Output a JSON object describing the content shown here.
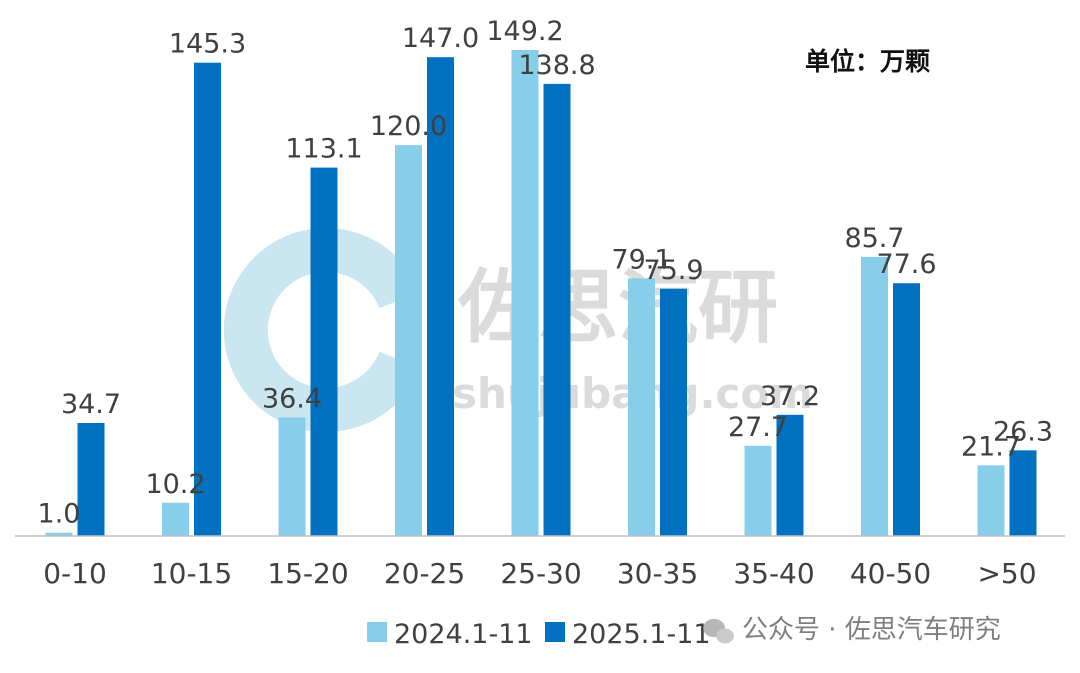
{
  "unit_label": "单位：万颗",
  "watermark": {
    "cn": "佐思汽研",
    "domain": "shujubang.com",
    "wechat": "公众号 · 佐思汽车研究",
    "wechat_icon": "wechat-icon",
    "logo_icon": "zuosi-logo-icon"
  },
  "colors": {
    "series1": "#87CEEB",
    "series2": "#0070C0",
    "axis": "#BFBFBF"
  },
  "chart_data": {
    "type": "bar",
    "categories": [
      "0-10",
      "10-15",
      "15-20",
      "20-25",
      "25-30",
      "30-35",
      "35-40",
      "40-50",
      ">50"
    ],
    "series": [
      {
        "name": "2024.1-11",
        "values": [
          1.0,
          10.2,
          36.4,
          120.0,
          149.2,
          79.1,
          27.7,
          85.7,
          21.7
        ],
        "labels": [
          "1.0",
          "10.2",
          "36.4",
          "120.0",
          "149.2",
          "79.1",
          "27.7",
          "85.7",
          "21.7"
        ]
      },
      {
        "name": "2025.1-11",
        "values": [
          34.7,
          145.3,
          113.1,
          147.0,
          138.8,
          75.9,
          37.2,
          77.6,
          26.3
        ],
        "labels": [
          "34.7",
          "145.3",
          "113.1",
          "147.0",
          "138.8",
          "75.9",
          "37.2",
          "77.6",
          "26.3"
        ]
      }
    ],
    "ylim": [
      0,
      149.2
    ],
    "grid": false,
    "legend_position": "bottom"
  }
}
